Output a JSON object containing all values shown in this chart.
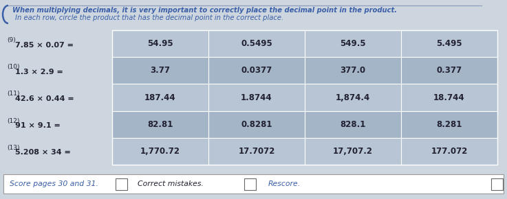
{
  "header_line1": "When multiplying decimals, it is very important to correctly place the decimal point in the product.",
  "header_line2": "In each row, circle the product that has the decimal point in the correct place.",
  "rows": [
    {
      "num": "(9)",
      "expr": "7.85 × 0.07 =",
      "col1": "54.95",
      "col2": "0.5495",
      "col3": "549.5",
      "col4": "5.495"
    },
    {
      "num": "(10)",
      "expr": "1.3 × 2.9 =",
      "col1": "3.77",
      "col2": "0.0377",
      "col3": "377.0",
      "col4": "0.377"
    },
    {
      "num": "(11)",
      "expr": "42.6 × 0.44 =",
      "col1": "187.44",
      "col2": "1.8744",
      "col3": "1,874.4",
      "col4": "18.744"
    },
    {
      "num": "(12)",
      "expr": "91 × 9.1 =",
      "col1": "82.81",
      "col2": "0.8281",
      "col3": "828.1",
      "col4": "8.281"
    },
    {
      "num": "(13)",
      "expr": "5.208 × 34 =",
      "col1": "1,770.72",
      "col2": "17.7072",
      "col3": "17,707.2",
      "col4": "177.072"
    }
  ],
  "footer_left": "Score pages 30 and 31.",
  "footer_mid": "Correct mistakes.",
  "footer_right": "Rescore.",
  "table_col_light": "#b8c5d4",
  "table_col_dark": "#a5b5c8",
  "header_color": "#3a5fa8",
  "text_color": "#222233",
  "page_bg": "#cdd5de"
}
